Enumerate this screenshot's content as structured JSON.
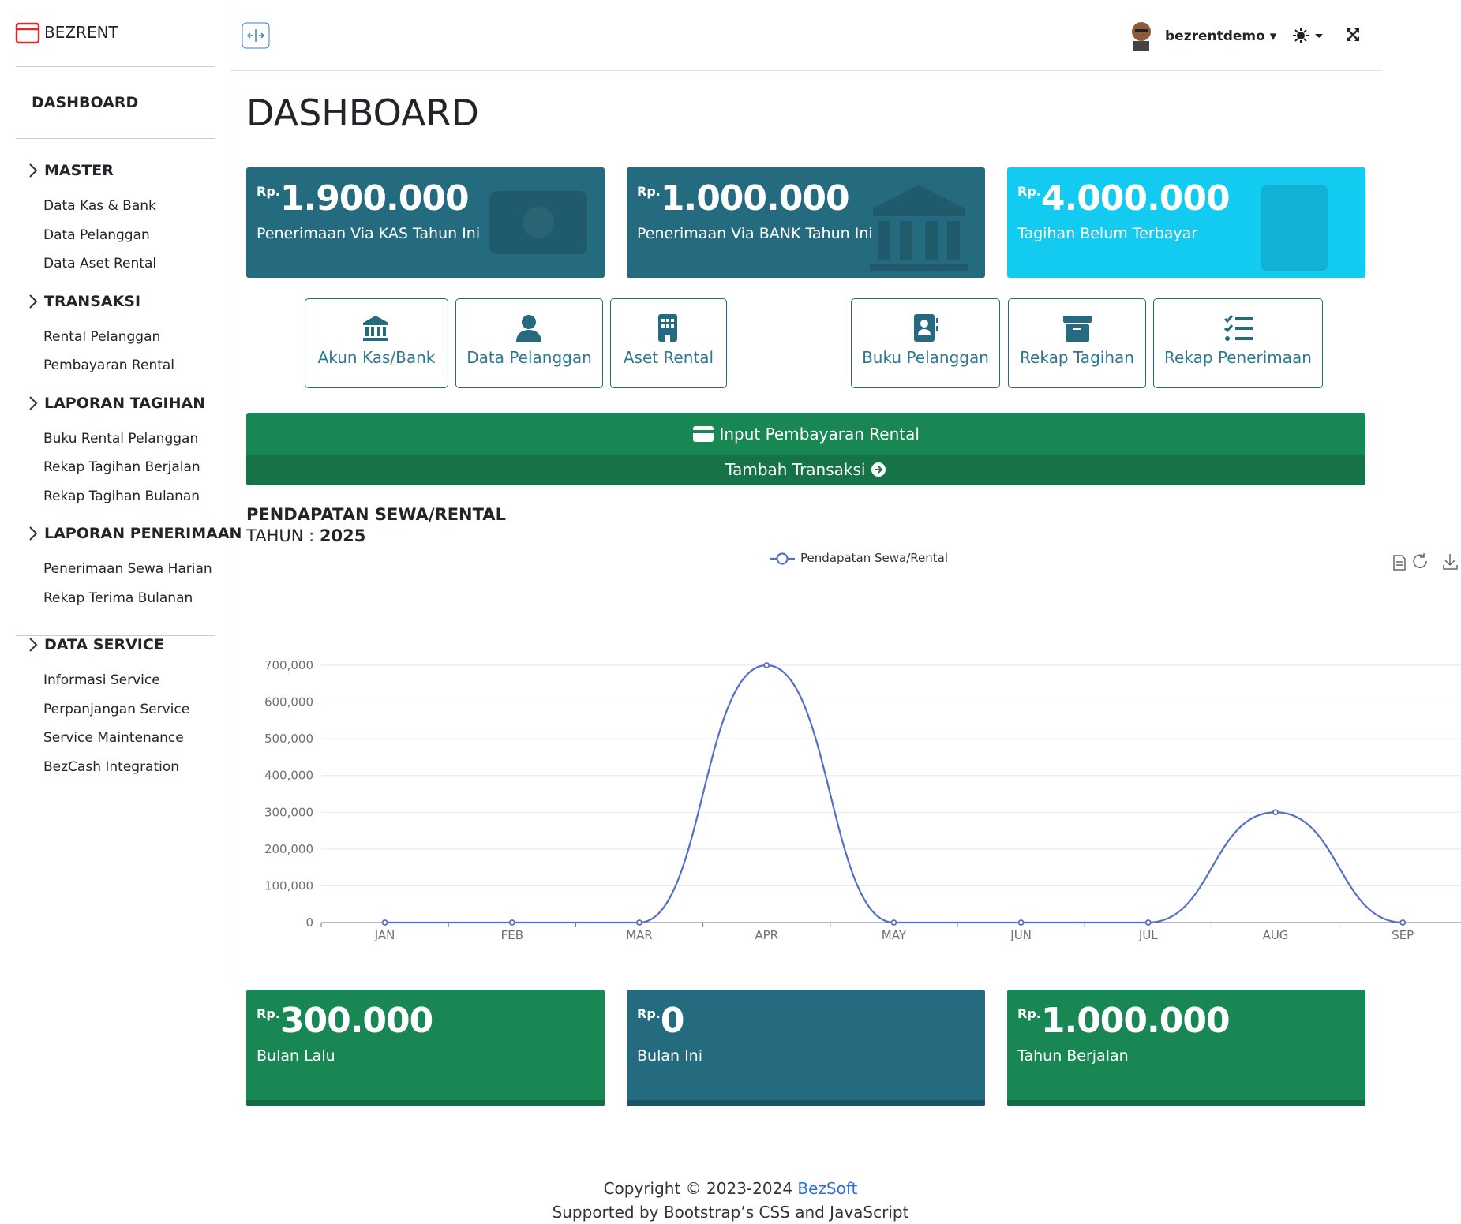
{
  "brand": "BEZRENT",
  "sidebar": {
    "dashboard": "DASHBOARD",
    "groups": [
      {
        "title": "MASTER",
        "items": [
          "Data Kas & Bank",
          "Data Pelanggan",
          "Data Aset Rental"
        ]
      },
      {
        "title": "TRANSAKSI",
        "items": [
          "Rental Pelanggan",
          "Pembayaran Rental"
        ]
      },
      {
        "title": "LAPORAN TAGIHAN",
        "items": [
          "Buku Rental Pelanggan",
          "Rekap Tagihan Berjalan",
          "Rekap Tagihan Bulanan"
        ]
      },
      {
        "title": "LAPORAN PENERIMAAN",
        "items": [
          "Penerimaan Sewa Harian",
          "Rekap Terima Bulanan"
        ]
      },
      {
        "title": "DATA SERVICE",
        "items": [
          "Informasi Service",
          "Perpanjangan Service",
          "Service Maintenance",
          "BezCash Integration"
        ]
      }
    ]
  },
  "header": {
    "user": "bezrentdemo"
  },
  "page_title": "DASHBOARD",
  "summary_cards": [
    {
      "currency": "Rp.",
      "amount": "1.900.000",
      "label": "Penerimaan Via KAS Tahun Ini"
    },
    {
      "currency": "Rp.",
      "amount": "1.000.000",
      "label": "Penerimaan Via BANK Tahun Ini"
    },
    {
      "currency": "Rp.",
      "amount": "4.000.000",
      "label": "Tagihan Belum Terbayar"
    }
  ],
  "shortcuts": [
    "Akun Kas/Bank",
    "Data Pelanggan",
    "Aset Rental",
    "Buku Pelanggan",
    "Rekap Tagihan",
    "Rekap Penerimaan"
  ],
  "payment_bar": {
    "title": "Input Pembayaran Rental",
    "action": "Tambah Transaksi"
  },
  "chart_section": {
    "title": "PENDAPATAN SEWA/RENTAL",
    "year_label": "TAHUN :",
    "year": "2025"
  },
  "chart_data": {
    "type": "line",
    "categories": [
      "JAN",
      "FEB",
      "MAR",
      "APR",
      "MAY",
      "JUN",
      "JUL",
      "AUG",
      "SEP"
    ],
    "series": [
      {
        "name": "Pendapatan Sewa/Rental",
        "color": "#5470c6",
        "values": [
          0,
          0,
          0,
          700000,
          0,
          0,
          0,
          300000,
          0
        ]
      }
    ],
    "ylim": [
      0,
      700000
    ],
    "yticks": [
      0,
      {
        "value": 100000,
        "label": "100,000"
      },
      {
        "value": 200000,
        "label": "200,000"
      },
      {
        "value": 300000,
        "label": "300,000"
      },
      {
        "value": 400000,
        "label": "400,000"
      },
      {
        "value": 500000,
        "label": "500,000"
      },
      {
        "value": 600000,
        "label": "600,000"
      },
      {
        "value": 700000,
        "label": "700,000"
      }
    ],
    "grid": true,
    "smooth": true
  },
  "period_cards": [
    {
      "currency": "Rp.",
      "amount": "300.000",
      "label": "Bulan Lalu"
    },
    {
      "currency": "Rp.",
      "amount": "0",
      "label": "Bulan Ini"
    },
    {
      "currency": "Rp.",
      "amount": "1.000.000",
      "label": "Tahun Berjalan"
    }
  ],
  "footer": {
    "copyright": "Copyright © 2023-2024",
    "company": "BezSoft",
    "support": "Supported by Bootstrap’s CSS and JavaScript"
  }
}
